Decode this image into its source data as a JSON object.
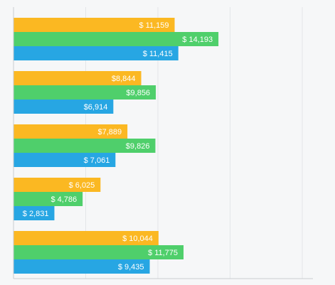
{
  "chart_data": {
    "type": "bar",
    "orientation": "horizontal",
    "title": "",
    "xlabel": "",
    "ylabel": "",
    "xlim": [
      0,
      20000
    ],
    "grid": true,
    "legend": "none",
    "categories": [
      "",
      "",
      "",
      "",
      ""
    ],
    "series": [
      {
        "color": "#fbb822",
        "values": [
          11159,
          8844,
          7889,
          6025,
          10044
        ],
        "labels": [
          "$ 11,159",
          "$8,844",
          "$7,889",
          "$ 6,025",
          "$ 10,044"
        ]
      },
      {
        "color": "#4fcf6b",
        "values": [
          14193,
          9856,
          9826,
          4786,
          11775
        ],
        "labels": [
          "$ 14,193",
          "$9,856",
          "$9,826",
          "$ 4,786",
          "$ 11,775"
        ]
      },
      {
        "color": "#27a6e3",
        "values": [
          11415,
          6914,
          7061,
          2831,
          9435
        ],
        "labels": [
          "$ 11,415",
          "$6,914",
          "$ 7,061",
          "$ 2,831",
          "$ 9,435"
        ]
      }
    ]
  }
}
